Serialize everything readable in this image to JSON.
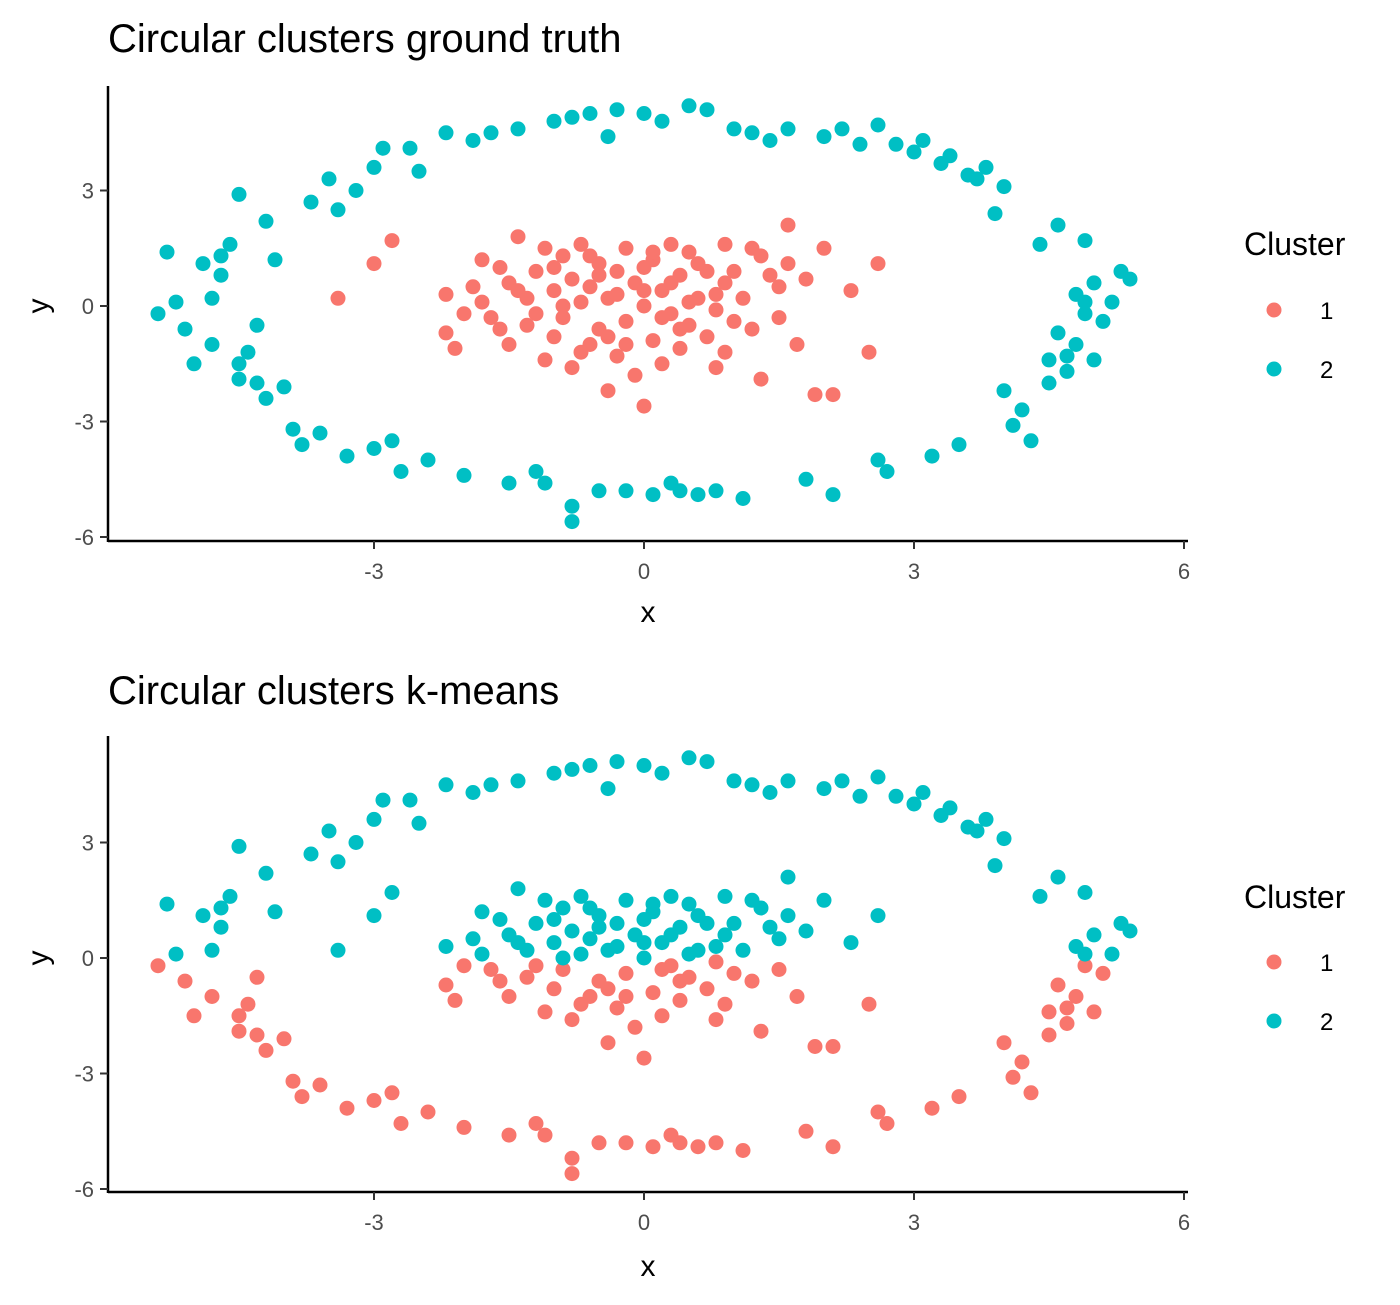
{
  "colors": {
    "1": "#F8766D",
    "2": "#00BFC4"
  },
  "chart_data": [
    {
      "type": "scatter",
      "title": "Circular clusters ground truth",
      "xlabel": "x",
      "ylabel": "y",
      "xlim": [
        -5.5,
        6.0
      ],
      "ylim": [
        -6.0,
        5.5
      ],
      "xticks": [
        -3,
        0,
        3,
        6
      ],
      "yticks": [
        -6,
        -3,
        0,
        3
      ],
      "legend": {
        "title": "Cluster",
        "placement": "right",
        "entries": [
          "1",
          "2"
        ]
      },
      "series": [
        {
          "name": "1",
          "color": "#F8766D",
          "coloring": "ground_truth"
        },
        {
          "name": "2",
          "color": "#00BFC4",
          "coloring": "ground_truth"
        }
      ]
    },
    {
      "type": "scatter",
      "title": "Circular clusters k-means",
      "xlabel": "x",
      "ylabel": "y",
      "xlim": [
        -5.5,
        6.0
      ],
      "ylim": [
        -6.0,
        5.5
      ],
      "xticks": [
        -3,
        0,
        3,
        6
      ],
      "yticks": [
        -6,
        -3,
        0,
        3
      ],
      "legend": {
        "title": "Cluster",
        "placement": "right",
        "entries": [
          "1",
          "2"
        ]
      },
      "series": [
        {
          "name": "1",
          "color": "#F8766D",
          "coloring": "kmeans_split_y_below_0"
        },
        {
          "name": "2",
          "color": "#00BFC4",
          "coloring": "kmeans_split_y_above_0"
        }
      ]
    }
  ],
  "points": {
    "inner": [
      [
        -2.8,
        1.7
      ],
      [
        -3.0,
        1.1
      ],
      [
        -3.4,
        0.2
      ],
      [
        -2.2,
        0.3
      ],
      [
        -2.2,
        -0.7
      ],
      [
        -2.1,
        -1.1
      ],
      [
        -1.9,
        0.5
      ],
      [
        -1.8,
        0.1
      ],
      [
        -1.7,
        -0.3
      ],
      [
        -1.6,
        1.0
      ],
      [
        -1.5,
        0.6
      ],
      [
        -1.5,
        -1.0
      ],
      [
        -1.4,
        1.8
      ],
      [
        -1.3,
        -0.5
      ],
      [
        -1.3,
        0.2
      ],
      [
        -1.2,
        0.9
      ],
      [
        -1.1,
        -1.4
      ],
      [
        -1.0,
        0.4
      ],
      [
        -1.0,
        -0.8
      ],
      [
        -0.9,
        1.3
      ],
      [
        -0.9,
        -0.3
      ],
      [
        -0.8,
        0.7
      ],
      [
        -0.8,
        -1.6
      ],
      [
        -0.7,
        0.1
      ],
      [
        -0.7,
        1.6
      ],
      [
        -0.6,
        -1.0
      ],
      [
        -0.6,
        0.5
      ],
      [
        -0.5,
        -0.6
      ],
      [
        -0.5,
        1.1
      ],
      [
        -0.4,
        -2.2
      ],
      [
        -0.4,
        0.2
      ],
      [
        -0.3,
        -1.3
      ],
      [
        -0.3,
        0.9
      ],
      [
        -0.2,
        1.5
      ],
      [
        -0.2,
        -0.4
      ],
      [
        -0.1,
        0.6
      ],
      [
        -0.1,
        -1.8
      ],
      [
        0.0,
        -2.6
      ],
      [
        0.0,
        0.0
      ],
      [
        0.1,
        1.2
      ],
      [
        0.1,
        -0.9
      ],
      [
        0.2,
        0.4
      ],
      [
        0.2,
        -1.5
      ],
      [
        0.3,
        1.6
      ],
      [
        0.3,
        -0.2
      ],
      [
        0.4,
        0.8
      ],
      [
        0.4,
        -1.1
      ],
      [
        0.5,
        -0.5
      ],
      [
        0.5,
        1.4
      ],
      [
        0.6,
        0.2
      ],
      [
        0.7,
        -0.8
      ],
      [
        0.7,
        0.9
      ],
      [
        0.8,
        -0.1
      ],
      [
        0.8,
        -1.6
      ],
      [
        0.9,
        0.6
      ],
      [
        0.9,
        1.6
      ],
      [
        1.0,
        -0.4
      ],
      [
        1.1,
        0.2
      ],
      [
        1.2,
        1.5
      ],
      [
        1.3,
        -1.9
      ],
      [
        1.4,
        0.8
      ],
      [
        1.5,
        -0.3
      ],
      [
        1.6,
        1.1
      ],
      [
        1.6,
        2.1
      ],
      [
        1.7,
        -1.0
      ],
      [
        1.8,
        0.7
      ],
      [
        1.9,
        -2.3
      ],
      [
        2.0,
        1.5
      ],
      [
        2.1,
        -2.3
      ],
      [
        2.3,
        0.4
      ],
      [
        2.5,
        -1.2
      ],
      [
        2.6,
        1.1
      ],
      [
        -1.8,
        1.2
      ],
      [
        -1.2,
        -0.2
      ],
      [
        -0.6,
        1.3
      ],
      [
        0.0,
        1.0
      ],
      [
        0.5,
        0.1
      ],
      [
        1.0,
        0.9
      ],
      [
        -0.3,
        0.3
      ],
      [
        0.2,
        -0.3
      ],
      [
        -1.6,
        -0.6
      ],
      [
        -0.9,
        0.0
      ],
      [
        0.6,
        1.1
      ],
      [
        1.2,
        -0.6
      ],
      [
        -2.0,
        -0.2
      ],
      [
        0.9,
        -1.2
      ],
      [
        -0.4,
        -0.8
      ],
      [
        0.3,
        0.6
      ],
      [
        -1.1,
        1.5
      ],
      [
        1.5,
        0.5
      ],
      [
        -0.7,
        -1.2
      ],
      [
        0.1,
        1.4
      ],
      [
        -1.4,
        0.4
      ],
      [
        0.8,
        0.3
      ],
      [
        -0.2,
        -1.0
      ],
      [
        1.3,
        1.3
      ],
      [
        -0.5,
        0.8
      ],
      [
        0.4,
        -0.6
      ],
      [
        -1.0,
        1.0
      ],
      [
        0.0,
        0.4
      ]
    ],
    "outer": [
      [
        -5.4,
        -0.2
      ],
      [
        -5.3,
        1.4
      ],
      [
        -5.2,
        0.1
      ],
      [
        -5.1,
        -0.6
      ],
      [
        -5.0,
        -1.5
      ],
      [
        -4.9,
        1.1
      ],
      [
        -4.8,
        0.2
      ],
      [
        -4.7,
        0.8
      ],
      [
        -4.6,
        1.6
      ],
      [
        -4.5,
        -1.9
      ],
      [
        -4.5,
        -1.5
      ],
      [
        -4.4,
        -1.2
      ],
      [
        -4.3,
        -2.0
      ],
      [
        -4.2,
        -2.4
      ],
      [
        -4.1,
        1.2
      ],
      [
        -4.3,
        -0.5
      ],
      [
        -4.5,
        2.9
      ],
      [
        -4.2,
        2.2
      ],
      [
        -4.0,
        -2.1
      ],
      [
        -3.9,
        -3.2
      ],
      [
        -3.8,
        -3.6
      ],
      [
        -3.6,
        -3.3
      ],
      [
        -3.5,
        3.3
      ],
      [
        -3.4,
        2.5
      ],
      [
        -3.3,
        -3.9
      ],
      [
        -3.2,
        3.0
      ],
      [
        -3.0,
        -3.7
      ],
      [
        -3.0,
        3.6
      ],
      [
        -2.9,
        4.1
      ],
      [
        -2.8,
        -3.5
      ],
      [
        -2.6,
        4.1
      ],
      [
        -2.5,
        3.5
      ],
      [
        -2.4,
        -4.0
      ],
      [
        -2.2,
        4.5
      ],
      [
        -2.0,
        -4.4
      ],
      [
        -1.9,
        4.3
      ],
      [
        -1.7,
        4.5
      ],
      [
        -1.5,
        -4.6
      ],
      [
        -1.4,
        4.6
      ],
      [
        -1.2,
        -4.3
      ],
      [
        -1.0,
        4.8
      ],
      [
        -0.8,
        4.9
      ],
      [
        -0.8,
        -5.2
      ],
      [
        -0.8,
        -5.6
      ],
      [
        -0.6,
        5.0
      ],
      [
        -0.5,
        -4.8
      ],
      [
        -0.3,
        5.1
      ],
      [
        -0.2,
        -4.8
      ],
      [
        0.0,
        5.0
      ],
      [
        0.1,
        -4.9
      ],
      [
        0.2,
        4.8
      ],
      [
        0.3,
        -4.6
      ],
      [
        0.5,
        5.2
      ],
      [
        0.6,
        -4.9
      ],
      [
        0.7,
        5.1
      ],
      [
        0.8,
        -4.8
      ],
      [
        1.0,
        4.6
      ],
      [
        1.2,
        4.5
      ],
      [
        1.4,
        4.3
      ],
      [
        1.6,
        4.6
      ],
      [
        1.8,
        -4.5
      ],
      [
        2.0,
        4.4
      ],
      [
        2.1,
        -4.9
      ],
      [
        2.2,
        4.6
      ],
      [
        2.4,
        4.2
      ],
      [
        2.6,
        4.7
      ],
      [
        2.7,
        -4.3
      ],
      [
        2.8,
        4.2
      ],
      [
        3.0,
        4.0
      ],
      [
        3.1,
        4.3
      ],
      [
        3.2,
        -3.9
      ],
      [
        3.4,
        3.9
      ],
      [
        3.5,
        -3.6
      ],
      [
        3.6,
        3.4
      ],
      [
        3.7,
        3.3
      ],
      [
        3.8,
        3.6
      ],
      [
        3.9,
        2.4
      ],
      [
        4.0,
        3.1
      ],
      [
        4.0,
        -2.2
      ],
      [
        4.1,
        -3.1
      ],
      [
        4.2,
        -2.7
      ],
      [
        4.3,
        -3.5
      ],
      [
        4.4,
        1.6
      ],
      [
        4.5,
        -2.0
      ],
      [
        4.5,
        -1.4
      ],
      [
        4.6,
        -0.7
      ],
      [
        4.6,
        2.1
      ],
      [
        4.7,
        -1.3
      ],
      [
        4.8,
        0.3
      ],
      [
        4.8,
        -1.0
      ],
      [
        4.9,
        1.7
      ],
      [
        4.9,
        -0.2
      ],
      [
        5.0,
        0.6
      ],
      [
        5.0,
        -1.4
      ],
      [
        5.1,
        -0.4
      ],
      [
        5.2,
        0.1
      ],
      [
        5.3,
        0.9
      ],
      [
        5.4,
        0.7
      ],
      [
        -4.8,
        -1.0
      ],
      [
        4.7,
        -1.7
      ],
      [
        -3.7,
        2.7
      ],
      [
        3.3,
        3.7
      ],
      [
        -1.1,
        -4.6
      ],
      [
        1.1,
        -5.0
      ],
      [
        -2.7,
        -4.3
      ],
      [
        2.6,
        -4.0
      ],
      [
        -4.7,
        1.3
      ],
      [
        4.9,
        0.1
      ],
      [
        0.4,
        -4.8
      ],
      [
        -0.4,
        4.4
      ]
    ]
  }
}
